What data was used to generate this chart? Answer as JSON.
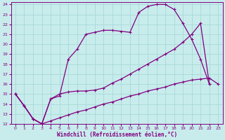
{
  "xlabel": "Windchill (Refroidissement éolien,°C)",
  "bg_color": "#c8ecec",
  "line_color": "#800080",
  "grid_color": "#a8d8d8",
  "xlim": [
    -0.5,
    23.5
  ],
  "ylim": [
    12,
    24.2
  ],
  "xticks": [
    0,
    1,
    2,
    3,
    4,
    5,
    6,
    7,
    8,
    9,
    10,
    11,
    12,
    13,
    14,
    15,
    16,
    17,
    18,
    19,
    20,
    21,
    22,
    23
  ],
  "yticks": [
    12,
    13,
    14,
    15,
    16,
    17,
    18,
    19,
    20,
    21,
    22,
    23,
    24
  ],
  "s1_x": [
    0,
    1,
    2,
    3,
    4,
    5,
    6,
    7,
    8,
    9,
    10,
    11,
    12,
    13,
    14,
    15,
    16,
    17,
    18,
    19,
    20,
    21,
    22,
    23
  ],
  "s1_y": [
    15.0,
    13.8,
    12.5,
    12.0,
    12.3,
    12.6,
    12.9,
    13.2,
    13.4,
    13.7,
    14.0,
    14.2,
    14.5,
    14.8,
    15.0,
    15.3,
    15.5,
    15.7,
    16.0,
    16.2,
    16.4,
    16.5,
    16.6,
    16.0
  ],
  "s2_x": [
    0,
    1,
    2,
    3,
    4,
    5,
    6,
    7,
    8,
    9,
    10,
    11,
    12,
    13,
    14,
    15,
    16,
    17,
    18,
    19,
    20,
    21,
    22,
    23
  ],
  "s2_y": [
    15.0,
    13.8,
    12.5,
    12.0,
    14.5,
    14.8,
    18.5,
    19.5,
    21.0,
    21.2,
    21.4,
    21.4,
    21.3,
    21.2,
    23.2,
    23.8,
    24.0,
    24.0,
    23.5,
    22.1,
    20.5,
    18.5,
    16.0,
    null
  ],
  "s3_x": [
    0,
    1,
    2,
    3,
    4,
    5,
    6,
    7,
    8,
    9,
    10,
    11,
    12,
    13,
    14,
    15,
    16,
    17,
    18,
    19,
    20,
    21,
    22,
    23
  ],
  "s3_y": [
    15.0,
    13.8,
    12.5,
    12.0,
    14.5,
    15.0,
    15.2,
    15.3,
    15.3,
    15.4,
    15.6,
    16.1,
    16.5,
    17.0,
    17.5,
    18.0,
    18.5,
    19.0,
    19.5,
    20.2,
    21.0,
    22.1,
    16.0,
    null
  ]
}
